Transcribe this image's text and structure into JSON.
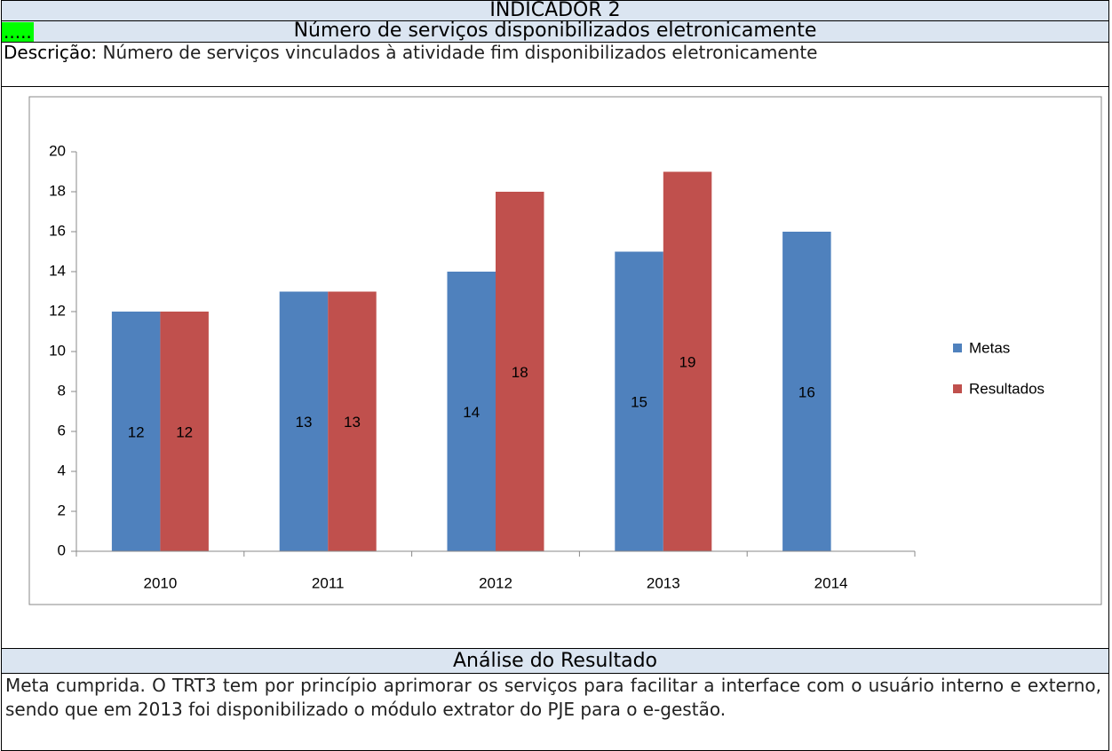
{
  "header": {
    "title": "INDICADOR 2",
    "marker": ".....",
    "subtitle": "Número de serviços disponibilizados eletronicamente"
  },
  "description": {
    "label": "Descrição:",
    "text": "Número de serviços vinculados à atividade fim disponibilizados eletronicamente"
  },
  "chart_data": {
    "type": "bar",
    "categories": [
      "2010",
      "2011",
      "2012",
      "2013",
      "2014"
    ],
    "series": [
      {
        "name": "Metas",
        "color": "#4f81bd",
        "values": [
          12,
          13,
          14,
          15,
          16
        ]
      },
      {
        "name": "Resultados",
        "color": "#c0504d",
        "values": [
          12,
          13,
          18,
          19,
          null
        ]
      }
    ],
    "ylim": [
      0,
      20
    ],
    "yticks": [
      0,
      2,
      4,
      6,
      8,
      10,
      12,
      14,
      16,
      18,
      20
    ],
    "grid": false,
    "legend": "right",
    "data_labels": true
  },
  "analysis": {
    "title": "Análise do Resultado",
    "text": "Meta cumprida. O TRT3 tem por princípio aprimorar os serviços para facilitar a interface com o usuário interno e externo, sendo que em 2013 foi disponibilizado o módulo extrator do PJE para o e-gestão."
  }
}
